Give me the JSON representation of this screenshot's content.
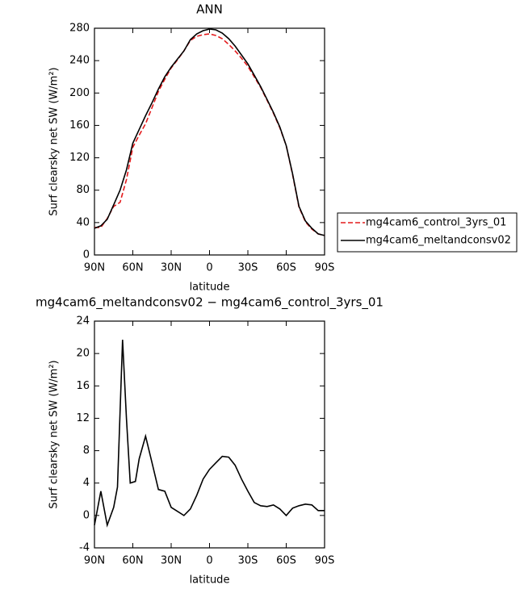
{
  "chart_data": [
    {
      "type": "line",
      "title": "ANN",
      "xlabel": "latitude",
      "ylabel": "Surf clearsky net SW (W/m²)",
      "x": [
        90,
        85,
        80,
        75,
        70,
        65,
        60,
        55,
        50,
        45,
        40,
        35,
        30,
        25,
        20,
        15,
        10,
        5,
        0,
        -5,
        -10,
        -15,
        -20,
        -25,
        -30,
        -35,
        -40,
        -45,
        -50,
        -55,
        -60,
        -65,
        -70,
        -75,
        -80,
        -85,
        -90
      ],
      "series": [
        {
          "name": "mg4cam6_control_3yrs_01",
          "color": "#e41a1c",
          "linestyle": "dashed",
          "values": [
            34,
            34,
            45,
            60,
            65,
            93,
            133,
            148,
            162,
            182,
            202,
            217,
            231,
            241,
            252,
            265,
            270,
            272,
            273,
            271,
            267,
            260,
            252,
            243,
            233,
            220,
            207,
            191,
            175,
            157,
            135,
            99,
            59,
            41,
            32,
            26,
            24
          ]
        },
        {
          "name": "mg4cam6_meltandconsv02",
          "color": "#000000",
          "linestyle": "solid",
          "values": [
            33,
            36,
            44,
            62,
            80,
            105,
            138,
            155,
            172,
            188,
            205,
            220,
            232,
            242,
            252,
            266,
            273,
            277,
            279,
            278,
            274,
            267,
            258,
            247,
            236,
            222,
            208,
            192,
            176,
            158,
            135,
            100,
            60,
            42,
            33,
            26,
            24
          ]
        }
      ],
      "xlim": [
        90,
        -90
      ],
      "xticks": [
        {
          "value": 90,
          "label": "90N"
        },
        {
          "value": 60,
          "label": "60N"
        },
        {
          "value": 30,
          "label": "30N"
        },
        0,
        {
          "value": -30,
          "label": "30S"
        },
        {
          "value": -60,
          "label": "60S"
        },
        {
          "value": -90,
          "label": "90S"
        }
      ],
      "ylim": [
        0,
        280
      ],
      "yticks": [
        0,
        40,
        80,
        120,
        160,
        200,
        240,
        280
      ],
      "legend": "right"
    },
    {
      "type": "line",
      "title": "mg4cam6_meltandconsv02 − mg4cam6_control_3yrs_01",
      "xlabel": "latitude",
      "ylabel": "Surf clearsky net SW (W/m²)",
      "x": [
        90,
        85,
        80,
        75,
        72,
        68,
        65,
        62,
        58,
        55,
        50,
        45,
        40,
        35,
        30,
        25,
        20,
        15,
        10,
        5,
        0,
        -5,
        -10,
        -15,
        -20,
        -25,
        -30,
        -35,
        -40,
        -45,
        -50,
        -55,
        -60,
        -65,
        -70,
        -75,
        -80,
        -85,
        -90
      ],
      "series": [
        {
          "color": "#000000",
          "linestyle": "solid",
          "values": [
            -1.2,
            3.0,
            -1.2,
            1.0,
            3.5,
            21.7,
            12,
            4,
            4.2,
            7,
            9.8,
            6.5,
            3.2,
            3.0,
            1,
            0.5,
            0,
            0.8,
            2.5,
            4.5,
            5.7,
            6.5,
            7.3,
            7.2,
            6.2,
            4.5,
            3,
            1.6,
            1.2,
            1.1,
            1.3,
            0.8,
            0,
            0.9,
            1.2,
            1.4,
            1.3,
            0.6,
            0.6
          ]
        }
      ],
      "xlim": [
        90,
        -90
      ],
      "xticks": [
        {
          "value": 90,
          "label": "90N"
        },
        {
          "value": 60,
          "label": "60N"
        },
        {
          "value": 30,
          "label": "30N"
        },
        0,
        {
          "value": -30,
          "label": "30S"
        },
        {
          "value": -60,
          "label": "60S"
        },
        {
          "value": -90,
          "label": "90S"
        }
      ],
      "ylim": [
        -4,
        24
      ],
      "yticks": [
        -4,
        0,
        4,
        8,
        12,
        16,
        20,
        24
      ]
    }
  ]
}
